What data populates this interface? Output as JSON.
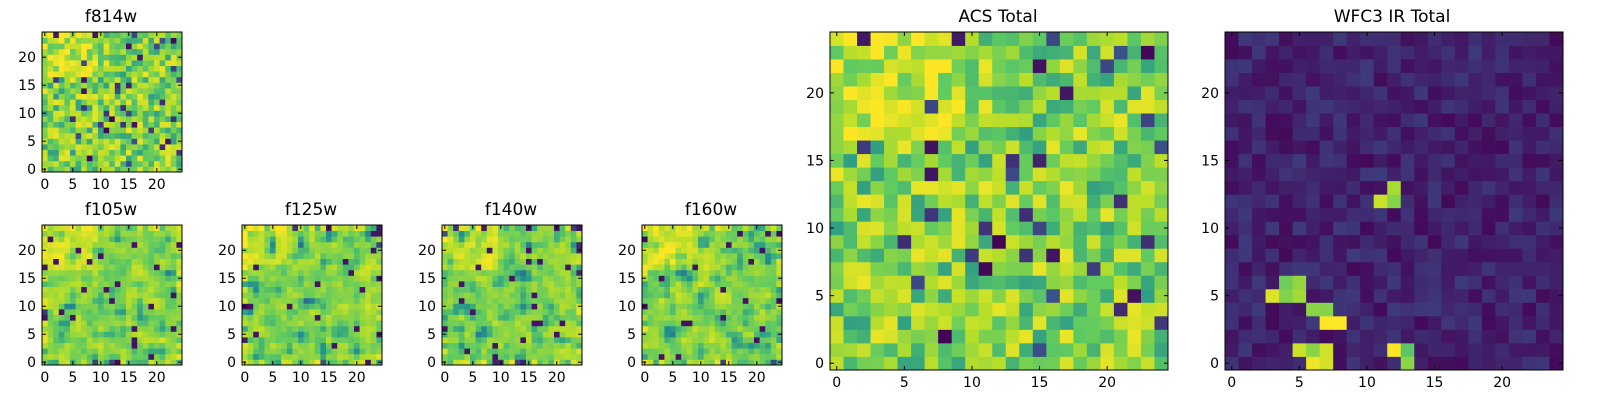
{
  "chart_data": [
    {
      "type": "heatmap",
      "title": "f814w",
      "seed": 11,
      "pattern": "acs",
      "xlim": [
        0,
        24
      ],
      "ylim": [
        0,
        24
      ],
      "xticks": [
        "0",
        "5",
        "10",
        "15",
        "20"
      ],
      "yticks": [
        "0",
        "5",
        "10",
        "15",
        "20"
      ]
    },
    {
      "type": "heatmap",
      "title": "f105w",
      "seed": 21,
      "pattern": "ir_band",
      "xlim": [
        0,
        24
      ],
      "ylim": [
        0,
        24
      ],
      "xticks": [
        "0",
        "5",
        "10",
        "15",
        "20"
      ],
      "yticks": [
        "0",
        "5",
        "10",
        "15",
        "20"
      ]
    },
    {
      "type": "heatmap",
      "title": "f125w",
      "seed": 32,
      "pattern": "ir_band",
      "xlim": [
        0,
        24
      ],
      "ylim": [
        0,
        24
      ],
      "xticks": [
        "0",
        "5",
        "10",
        "15",
        "20"
      ],
      "yticks": [
        "0",
        "5",
        "10",
        "15",
        "20"
      ]
    },
    {
      "type": "heatmap",
      "title": "f140w",
      "seed": 43,
      "pattern": "ir_band",
      "xlim": [
        0,
        24
      ],
      "ylim": [
        0,
        24
      ],
      "xticks": [
        "0",
        "5",
        "10",
        "15",
        "20"
      ],
      "yticks": [
        "0",
        "5",
        "10",
        "15",
        "20"
      ]
    },
    {
      "type": "heatmap",
      "title": "f160w",
      "seed": 54,
      "pattern": "ir_band",
      "xlim": [
        0,
        24
      ],
      "ylim": [
        0,
        24
      ],
      "xticks": [
        "0",
        "5",
        "10",
        "15",
        "20"
      ],
      "yticks": [
        "0",
        "5",
        "10",
        "15",
        "20"
      ]
    },
    {
      "type": "heatmap",
      "title": "ACS Total",
      "seed": 11,
      "pattern": "acs",
      "xlim": [
        0,
        24
      ],
      "ylim": [
        0,
        24
      ],
      "xticks": [
        "0",
        "5",
        "10",
        "15",
        "20"
      ],
      "yticks": [
        "0",
        "5",
        "10",
        "15",
        "20"
      ]
    },
    {
      "type": "heatmap",
      "title": "WFC3 IR Total",
      "seed": 77,
      "pattern": "ir_total",
      "xlim": [
        0,
        24
      ],
      "ylim": [
        0,
        24
      ],
      "xticks": [
        "0",
        "5",
        "10",
        "15",
        "20"
      ],
      "yticks": [
        "0",
        "5",
        "10",
        "15",
        "20"
      ],
      "bright_pixels": [
        [
          3,
          5
        ],
        [
          4,
          5
        ],
        [
          4,
          6
        ],
        [
          5,
          6
        ],
        [
          5,
          5
        ],
        [
          6,
          4
        ],
        [
          7,
          3
        ],
        [
          7,
          4
        ],
        [
          8,
          3
        ],
        [
          5,
          1
        ],
        [
          6,
          1
        ],
        [
          6,
          0
        ],
        [
          7,
          0
        ],
        [
          7,
          1
        ],
        [
          12,
          1
        ],
        [
          13,
          1
        ],
        [
          13,
          0
        ],
        [
          12,
          12
        ],
        [
          12,
          13
        ],
        [
          11,
          12
        ]
      ]
    }
  ],
  "colormap": [
    "#440154",
    "#3b528b",
    "#21908d",
    "#5dc963",
    "#b5de2b",
    "#fde725"
  ]
}
